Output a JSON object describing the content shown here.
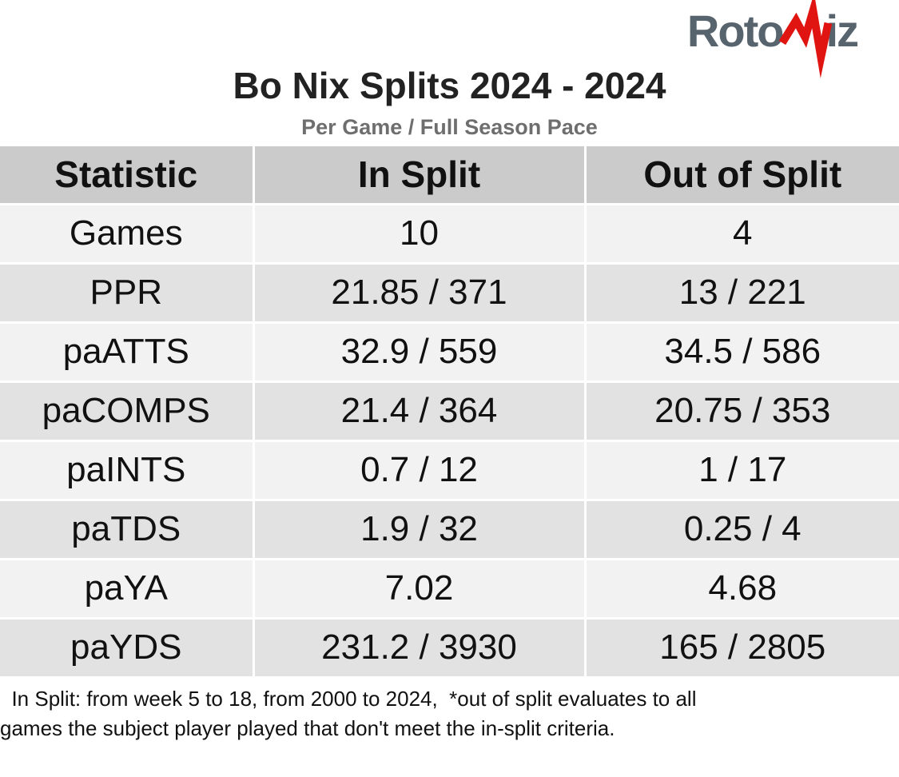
{
  "logo": {
    "part1": "Roto",
    "part2": "iz",
    "gray_color": "#57636d",
    "red_color": "#e01512",
    "icon": "heartbeat-v-icon"
  },
  "chart_data": {
    "type": "table",
    "title": "Bo Nix Splits 2024 - 2024",
    "subtitle": "Per Game / Full Season Pace",
    "columns": [
      "Statistic",
      "In Split",
      "Out of Split"
    ],
    "rows": [
      [
        "Games",
        "10",
        "4"
      ],
      [
        "PPR",
        "21.85 / 371",
        "13 / 221"
      ],
      [
        "paATTS",
        "32.9 / 559",
        "34.5 / 586"
      ],
      [
        "paCOMPS",
        "21.4 / 364",
        "20.75 / 353"
      ],
      [
        "paINTS",
        "0.7 / 12",
        "1 / 17"
      ],
      [
        "paTDS",
        "1.9 / 32",
        "0.25 / 4"
      ],
      [
        "paYA",
        "7.02",
        "4.68"
      ],
      [
        "paYDS",
        "231.2 / 3930",
        "165 / 2805"
      ]
    ],
    "footnote": "In Split: from week 5 to 18, from 2000 to 2024,  *out of split evaluates to all games the subject player played that don't meet the in-split criteria.",
    "layout": {
      "grid": "off",
      "legend": "none",
      "row_striping": true
    }
  },
  "footnote_lines": [
    "  In Split: from week 5 to 18, from 2000 to 2024,  *out of split evaluates to all",
    "games the subject player played that don't meet the in-split criteria."
  ],
  "colors": {
    "header_bg": "#cbcbcb",
    "row_light": "#f2f2f2",
    "row_dark": "#e2e2e2",
    "cell_gap": "#ffffff",
    "title_text": "#222222",
    "subtitle_text": "#6e6e6e",
    "body_text": "#111111"
  }
}
